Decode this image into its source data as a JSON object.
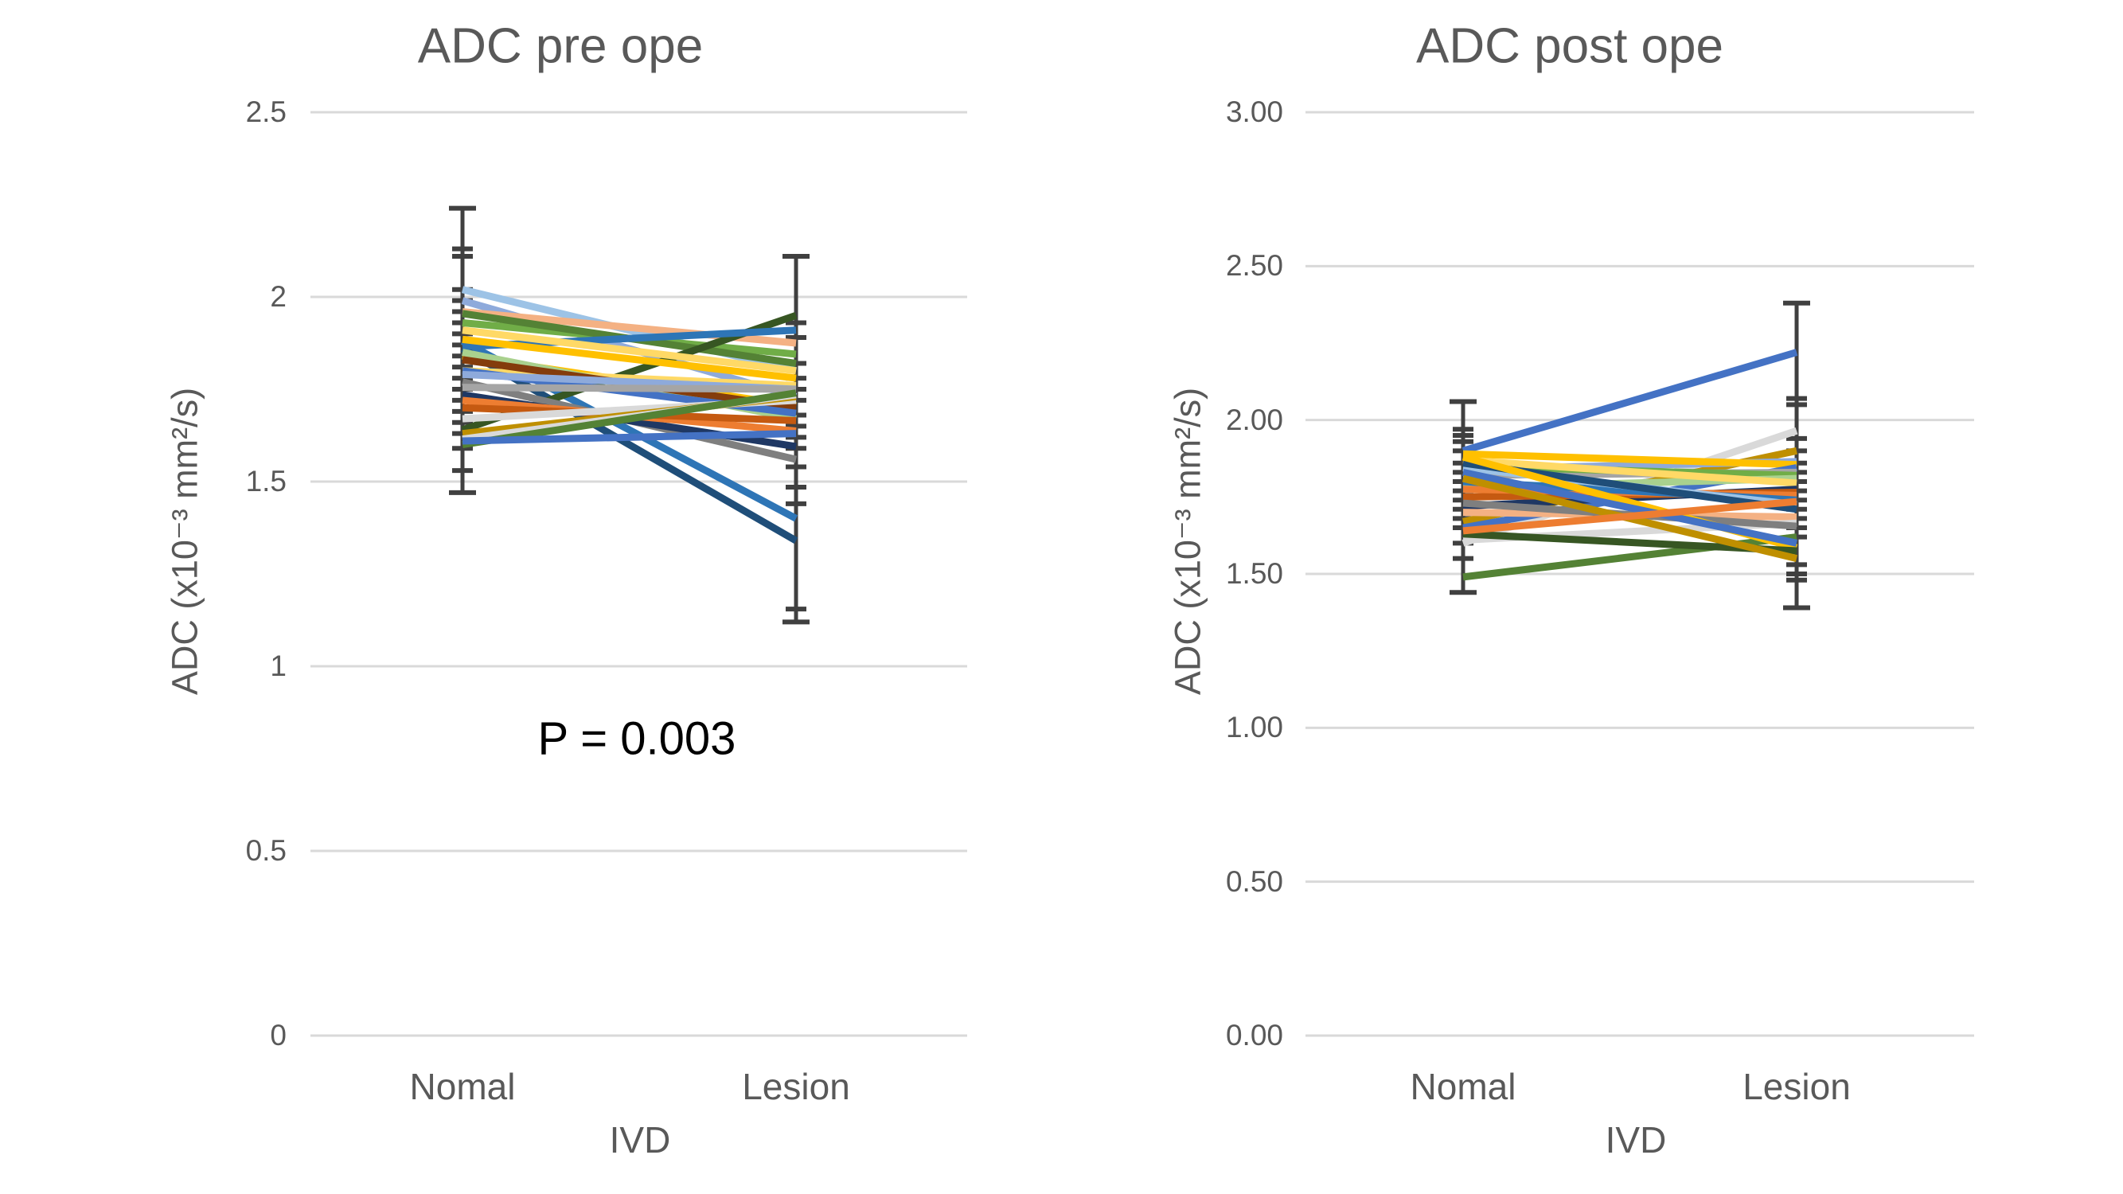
{
  "style": {
    "background": "#FFFFFF",
    "grid_color": "#D9D9D9",
    "error_bar_color": "#404040",
    "text_color": "#595959",
    "annotation_color": "#000000"
  },
  "chart_data": [
    {
      "type": "line",
      "title": "ADC pre ope",
      "ylabel": "ADC (x10⁻³ mm²/s)",
      "xlabel": "IVD",
      "categories": [
        "Nomal",
        "Lesion"
      ],
      "ylim": [
        0,
        2.5
      ],
      "grid": true,
      "legend": "none",
      "annotation": "P = 0.003",
      "yticks": [
        {
          "value": 2.5,
          "label": "2.5"
        },
        {
          "value": 2.0,
          "label": "2"
        },
        {
          "value": 1.5,
          "label": "1.5"
        },
        {
          "value": 1.0,
          "label": "1"
        },
        {
          "value": 0.5,
          "label": "0.5"
        },
        {
          "value": 0.0,
          "label": "0"
        }
      ],
      "series": [
        {
          "color": "#9DC3E6",
          "values": [
            2.02,
            1.8
          ]
        },
        {
          "color": "#8EAADB",
          "values": [
            1.99,
            1.73
          ]
        },
        {
          "color": "#2E75B6",
          "values": [
            1.88,
            1.4
          ]
        },
        {
          "color": "#1F4E79",
          "values": [
            1.86,
            1.34
          ]
        },
        {
          "color": "#F4B183",
          "values": [
            1.96,
            1.875
          ]
        },
        {
          "color": "#70AD47",
          "values": [
            1.93,
            1.845
          ]
        },
        {
          "color": "#548235",
          "values": [
            1.955,
            1.82
          ]
        },
        {
          "color": "#375623",
          "values": [
            1.64,
            1.95
          ]
        },
        {
          "color": "#2E75B6",
          "values": [
            1.865,
            1.91
          ]
        },
        {
          "color": "#FFD966",
          "values": [
            1.91,
            1.8
          ]
        },
        {
          "color": "#FFC000",
          "values": [
            1.885,
            1.78
          ]
        },
        {
          "color": "#FFC000",
          "values": [
            1.84,
            1.705
          ]
        },
        {
          "color": "#FFD966",
          "values": [
            1.8,
            1.76
          ]
        },
        {
          "color": "#A9D18E",
          "values": [
            1.85,
            1.67
          ]
        },
        {
          "color": "#843C0C",
          "values": [
            1.83,
            1.7
          ]
        },
        {
          "color": "#4472C4",
          "values": [
            1.8,
            1.685
          ]
        },
        {
          "color": "#8EAADB",
          "values": [
            1.79,
            1.75
          ]
        },
        {
          "color": "#7F7F7F",
          "values": [
            1.77,
            1.56
          ]
        },
        {
          "color": "#A5A5A5",
          "values": [
            1.755,
            1.75
          ]
        },
        {
          "color": "#1F3864",
          "values": [
            1.735,
            1.595
          ]
        },
        {
          "color": "#ED7D31",
          "values": [
            1.72,
            1.637
          ]
        },
        {
          "color": "#C55A11",
          "values": [
            1.7,
            1.665
          ]
        },
        {
          "color": "#D9D9D9",
          "values": [
            1.67,
            1.72
          ]
        },
        {
          "color": "#BF8F00",
          "values": [
            1.63,
            1.73
          ]
        },
        {
          "color": "#D9D9D9",
          "values": [
            1.615,
            1.735
          ]
        },
        {
          "color": "#548235",
          "values": [
            1.6,
            1.74
          ]
        },
        {
          "color": "#4472C4",
          "values": [
            1.61,
            1.63
          ]
        }
      ],
      "error_bars": [
        {
          "category": "Nomal",
          "min": 1.47,
          "max": 2.24,
          "caps": [
            2.24,
            2.13,
            2.11,
            2.02,
            1.99,
            1.96,
            1.93,
            1.9,
            1.87,
            1.84,
            1.81,
            1.78,
            1.75,
            1.72,
            1.69,
            1.66,
            1.63,
            1.59,
            1.53,
            1.47
          ]
        },
        {
          "category": "Lesion",
          "min": 1.12,
          "max": 2.11,
          "caps": [
            2.11,
            1.93,
            1.89,
            1.82,
            1.78,
            1.75,
            1.72,
            1.68,
            1.65,
            1.62,
            1.59,
            1.54,
            1.485,
            1.44,
            1.155,
            1.12
          ]
        }
      ]
    },
    {
      "type": "line",
      "title": "ADC post ope",
      "ylabel": "ADC (x10⁻³ mm²/s)",
      "xlabel": "IVD",
      "categories": [
        "Nomal",
        "Lesion"
      ],
      "ylim": [
        0,
        3.0
      ],
      "grid": true,
      "legend": "none",
      "annotation": "",
      "yticks": [
        {
          "value": 3.0,
          "label": "3.00"
        },
        {
          "value": 2.5,
          "label": "2.50"
        },
        {
          "value": 2.0,
          "label": "2.00"
        },
        {
          "value": 1.5,
          "label": "1.50"
        },
        {
          "value": 1.0,
          "label": "1.00"
        },
        {
          "value": 0.5,
          "label": "0.50"
        },
        {
          "value": 0.0,
          "label": "0.00"
        }
      ],
      "series": [
        {
          "color": "#4472C4",
          "values": [
            1.9,
            2.22
          ]
        },
        {
          "color": "#D9D9D9",
          "values": [
            1.6,
            1.965
          ]
        },
        {
          "color": "#BF8F00",
          "values": [
            1.67,
            1.9
          ]
        },
        {
          "color": "#8EAADB",
          "values": [
            1.84,
            1.865
          ]
        },
        {
          "color": "#FFC000",
          "values": [
            1.89,
            1.855
          ]
        },
        {
          "color": "#4472C4",
          "values": [
            1.65,
            1.845
          ]
        },
        {
          "color": "#A5A5A5",
          "values": [
            1.82,
            1.83
          ]
        },
        {
          "color": "#70AD47",
          "values": [
            1.85,
            1.82
          ]
        },
        {
          "color": "#A9D18E",
          "values": [
            1.78,
            1.81
          ]
        },
        {
          "color": "#FFD966",
          "values": [
            1.87,
            1.795
          ]
        },
        {
          "color": "#1F3864",
          "values": [
            1.72,
            1.775
          ]
        },
        {
          "color": "#C55A11",
          "values": [
            1.75,
            1.765
          ]
        },
        {
          "color": "#ED7D31",
          "values": [
            1.775,
            1.755
          ]
        },
        {
          "color": "#2E75B6",
          "values": [
            1.8,
            1.74
          ]
        },
        {
          "color": "#9DC3E6",
          "values": [
            1.845,
            1.725
          ]
        },
        {
          "color": "#1F4E79",
          "values": [
            1.86,
            1.71
          ]
        },
        {
          "color": "#F4B183",
          "values": [
            1.7,
            1.685
          ]
        },
        {
          "color": "#D9D9D9",
          "values": [
            1.61,
            1.665
          ]
        },
        {
          "color": "#7F7F7F",
          "values": [
            1.73,
            1.655
          ]
        },
        {
          "color": "#548235",
          "values": [
            1.49,
            1.62
          ]
        },
        {
          "color": "#FFC000",
          "values": [
            1.88,
            1.585
          ]
        },
        {
          "color": "#4472C4",
          "values": [
            1.83,
            1.6
          ]
        },
        {
          "color": "#375623",
          "values": [
            1.63,
            1.575
          ]
        },
        {
          "color": "#BF8F00",
          "values": [
            1.81,
            1.55
          ]
        },
        {
          "color": "#ED7D31",
          "values": [
            1.64,
            1.735
          ]
        }
      ],
      "error_bars": [
        {
          "category": "Nomal",
          "min": 1.44,
          "max": 2.06,
          "caps": [
            2.06,
            1.97,
            1.95,
            1.93,
            1.9,
            1.86,
            1.83,
            1.8,
            1.77,
            1.74,
            1.71,
            1.68,
            1.65,
            1.6,
            1.55,
            1.44
          ]
        },
        {
          "category": "Lesion",
          "min": 1.39,
          "max": 2.38,
          "caps": [
            2.38,
            2.07,
            2.05,
            1.94,
            1.9,
            1.86,
            1.83,
            1.8,
            1.77,
            1.74,
            1.71,
            1.68,
            1.65,
            1.62,
            1.53,
            1.5,
            1.48,
            1.39
          ]
        }
      ]
    }
  ]
}
